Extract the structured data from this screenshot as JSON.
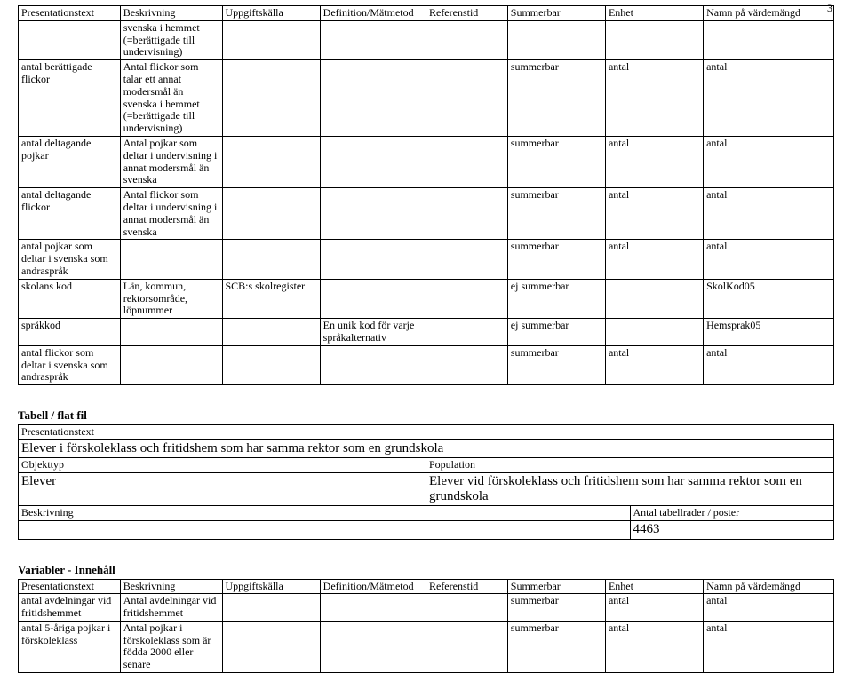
{
  "page": {
    "number": "3"
  },
  "table1": {
    "headers": [
      "Presentationstext",
      "Beskrivning",
      "Uppgiftskälla",
      "Definition/Mätmetod",
      "Referenstid",
      "Summerbar",
      "Enhet",
      "Namn på värdemängd"
    ],
    "rows": [
      [
        "",
        "svenska i hemmet (=berättigade till undervisning)",
        "",
        "",
        "",
        "",
        "",
        ""
      ],
      [
        "antal berättigade flickor",
        "Antal flickor som talar ett annat modersmål än svenska i hemmet (=berättigade till undervisning)",
        "",
        "",
        "",
        "summerbar",
        "antal",
        "antal"
      ],
      [
        "antal deltagande pojkar",
        "Antal pojkar som deltar i undervisning i annat modersmål än svenska",
        "",
        "",
        "",
        "summerbar",
        "antal",
        "antal"
      ],
      [
        "antal deltagande flickor",
        "Antal flickor som deltar i undervisning i annat modersmål än svenska",
        "",
        "",
        "",
        "summerbar",
        "antal",
        "antal"
      ],
      [
        "antal pojkar som deltar i svenska som andraspråk",
        "",
        "",
        "",
        "",
        "summerbar",
        "antal",
        "antal"
      ],
      [
        "skolans kod",
        "Län, kommun, rektorsområde, löpnummer",
        "SCB:s skolregister",
        "",
        "",
        "ej summerbar",
        "",
        "SkolKod05"
      ],
      [
        "språkkod",
        "",
        "",
        "En unik kod för varje språkalternativ",
        "",
        "ej summerbar",
        "",
        "Hemsprak05"
      ],
      [
        "antal flickor som deltar i svenska som andraspråk",
        "",
        "",
        "",
        "",
        "summerbar",
        "antal",
        "antal"
      ]
    ]
  },
  "section2": {
    "title": "Tabell / flat fil",
    "labels": {
      "presentationstext": "Presentationstext",
      "objekttyp": "Objekttyp",
      "population": "Population",
      "beskrivning": "Beskrivning",
      "antal_rader": "Antal tabellrader / poster"
    },
    "values": {
      "presentationstext": "Elever i förskoleklass och fritidshem som har samma rektor som en grundskola",
      "objekttyp": "Elever",
      "population": "Elever vid förskoleklass och fritidshem som har samma rektor som en grundskola",
      "beskrivning": "",
      "antal_rader": "4463"
    }
  },
  "section3": {
    "title": "Variabler - Innehåll",
    "headers": [
      "Presentationstext",
      "Beskrivning",
      "Uppgiftskälla",
      "Definition/Mätmetod",
      "Referenstid",
      "Summerbar",
      "Enhet",
      "Namn på värdemängd"
    ],
    "rows": [
      [
        "antal avdelningar vid fritidshemmet",
        "Antal avdelningar vid fritidshemmet",
        "",
        "",
        "",
        "summerbar",
        "antal",
        "antal"
      ],
      [
        "antal 5-åriga pojkar i förskoleklass",
        "Antal pojkar i förskoleklass som är födda 2000 eller senare",
        "",
        "",
        "",
        "summerbar",
        "antal",
        "antal"
      ]
    ]
  },
  "style": {
    "value_fontsize_large": "15px"
  }
}
